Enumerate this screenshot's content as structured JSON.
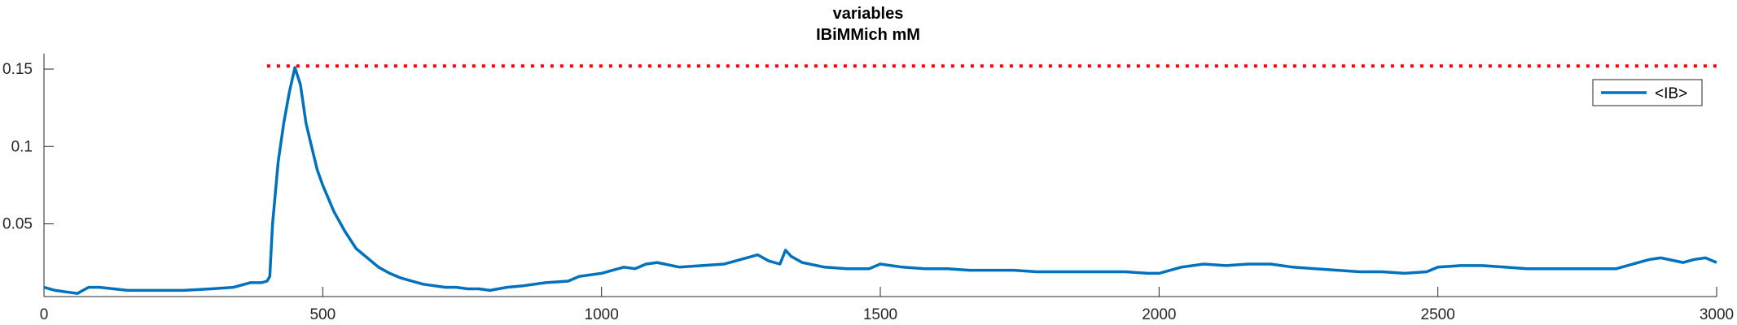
{
  "chart_data": {
    "type": "line",
    "title": "variables",
    "subtitle": "IBiMMich mM",
    "xlim": [
      0,
      3000
    ],
    "ylim": [
      0.003,
      0.16
    ],
    "x_ticks": [
      0,
      500,
      1000,
      1500,
      2000,
      2500,
      3000
    ],
    "x_tick_labels": [
      "0",
      "500",
      "1000",
      "1500",
      "2000",
      "2500",
      "3000"
    ],
    "y_ticks": [
      0.05,
      0.1,
      0.15
    ],
    "y_tick_labels": [
      "0.05",
      "0.1",
      "0.15"
    ],
    "grid": false,
    "legend": {
      "placement": "top-right",
      "entries": [
        "<IB>"
      ]
    },
    "reference_line": {
      "y": 0.152,
      "x_start": 400,
      "x_end": 3000,
      "style": "dotted",
      "color": "#ff0000"
    },
    "series": [
      {
        "name": "<IB>",
        "color": "#0072bd",
        "x": [
          0,
          20,
          40,
          60,
          70,
          80,
          100,
          150,
          200,
          250,
          300,
          340,
          360,
          370,
          380,
          390,
          400,
          405,
          410,
          420,
          430,
          440,
          450,
          460,
          470,
          480,
          490,
          500,
          520,
          540,
          560,
          580,
          600,
          620,
          640,
          650,
          660,
          680,
          700,
          720,
          740,
          760,
          780,
          800,
          830,
          860,
          900,
          940,
          960,
          1000,
          1020,
          1040,
          1060,
          1080,
          1100,
          1140,
          1180,
          1220,
          1260,
          1280,
          1300,
          1320,
          1330,
          1340,
          1360,
          1400,
          1440,
          1480,
          1500,
          1540,
          1580,
          1620,
          1660,
          1700,
          1740,
          1780,
          1820,
          1860,
          1900,
          1940,
          1980,
          2000,
          2040,
          2080,
          2120,
          2160,
          2200,
          2240,
          2280,
          2320,
          2360,
          2400,
          2440,
          2480,
          2500,
          2540,
          2580,
          2620,
          2660,
          2700,
          2740,
          2780,
          2820,
          2860,
          2880,
          2900,
          2940,
          2960,
          2980,
          3000
        ],
        "y": [
          0.009,
          0.007,
          0.006,
          0.005,
          0.007,
          0.009,
          0.009,
          0.007,
          0.007,
          0.007,
          0.008,
          0.009,
          0.011,
          0.012,
          0.012,
          0.012,
          0.013,
          0.016,
          0.05,
          0.09,
          0.115,
          0.135,
          0.151,
          0.14,
          0.115,
          0.1,
          0.085,
          0.075,
          0.058,
          0.045,
          0.034,
          0.028,
          0.022,
          0.018,
          0.015,
          0.014,
          0.013,
          0.011,
          0.01,
          0.009,
          0.009,
          0.008,
          0.008,
          0.007,
          0.009,
          0.01,
          0.012,
          0.013,
          0.016,
          0.018,
          0.02,
          0.022,
          0.021,
          0.024,
          0.025,
          0.022,
          0.023,
          0.024,
          0.028,
          0.03,
          0.026,
          0.024,
          0.033,
          0.029,
          0.025,
          0.022,
          0.021,
          0.021,
          0.024,
          0.022,
          0.021,
          0.021,
          0.02,
          0.02,
          0.02,
          0.019,
          0.019,
          0.019,
          0.019,
          0.019,
          0.018,
          0.018,
          0.022,
          0.024,
          0.023,
          0.024,
          0.024,
          0.022,
          0.021,
          0.02,
          0.019,
          0.019,
          0.018,
          0.019,
          0.022,
          0.023,
          0.023,
          0.022,
          0.021,
          0.021,
          0.021,
          0.021,
          0.021,
          0.025,
          0.027,
          0.028,
          0.025,
          0.027,
          0.028,
          0.025
        ]
      }
    ]
  }
}
